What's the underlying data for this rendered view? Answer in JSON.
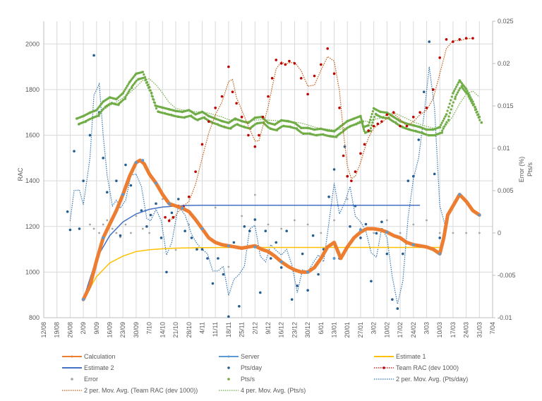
{
  "chart_data": {
    "type": "line",
    "title": "",
    "xlabel": "",
    "ylabel": "RAC",
    "y2label": [
      "Error (%)",
      "Pts/s"
    ],
    "ylim": [
      800,
      2100
    ],
    "y2lim": [
      -0.01,
      0.025
    ],
    "grid": true,
    "legend_position": "bottom",
    "y_ticks": [
      800,
      1000,
      1200,
      1400,
      1600,
      1800,
      2000
    ],
    "y2_ticks": [
      -0.01,
      -0.005,
      0,
      0.005,
      0.01,
      0.015,
      0.02,
      0.025
    ],
    "y2_tick_labels": [
      "-0.01",
      "-0.005",
      "0",
      "0.005",
      "0.01",
      "0.015",
      "0.02",
      "0.025"
    ],
    "x_tick_labels": [
      "12/08",
      "19/08",
      "26/08",
      "2/09",
      "9/09",
      "16/09",
      "23/09",
      "30/09",
      "7/10",
      "14/10",
      "21/10",
      "28/10",
      "4/11",
      "11/11",
      "18/11",
      "25/11",
      "2/12",
      "9/12",
      "16/12",
      "23/12",
      "30/12",
      "6/01",
      "13/01",
      "20/01",
      "27/01",
      "3/02",
      "10/02",
      "17/02",
      "24/02",
      "3/03",
      "10/03",
      "17/03",
      "24/03",
      "31/03",
      "7/04"
    ],
    "series": [
      {
        "name": "Calculation",
        "axis": "left",
        "style": "thick-line",
        "color": "#ED7D31",
        "x": [
          3.0,
          3.5,
          4.0,
          4.5,
          5.0,
          5.5,
          6.0,
          6.5,
          7.0,
          7.3,
          7.6,
          8.0,
          8.5,
          9.0,
          9.5,
          10.0,
          10.5,
          11.0,
          11.5,
          12.0,
          12.5,
          13.0,
          13.5,
          14.0,
          14.5,
          15.0,
          15.5,
          16.0,
          16.5,
          17.0,
          17.5,
          18.0,
          18.5,
          19.0,
          19.5,
          20.0,
          20.5,
          21.0,
          21.5,
          22.0,
          22.5,
          23.0,
          23.5,
          24.0,
          24.3,
          24.5,
          25.0,
          25.5,
          26.0,
          26.5,
          27.0,
          27.5,
          28.0,
          28.5,
          29.0,
          29.5,
          30.0,
          30.3,
          30.6,
          31.0,
          31.5,
          32.0,
          32.5,
          33.0
        ],
        "values": [
          880,
          940,
          1050,
          1150,
          1210,
          1270,
          1340,
          1420,
          1480,
          1490,
          1475,
          1430,
          1390,
          1340,
          1300,
          1290,
          1280,
          1265,
          1230,
          1190,
          1150,
          1130,
          1120,
          1115,
          1110,
          1105,
          1110,
          1115,
          1100,
          1090,
          1070,
          1045,
          1025,
          1010,
          1000,
          1000,
          1020,
          1060,
          1110,
          1130,
          1060,
          1110,
          1150,
          1175,
          1185,
          1190,
          1190,
          1185,
          1175,
          1160,
          1150,
          1130,
          1120,
          1115,
          1110,
          1100,
          1080,
          1150,
          1250,
          1290,
          1340,
          1310,
          1270,
          1250
        ]
      },
      {
        "name": "Server",
        "axis": "left",
        "style": "line-marker",
        "color": "#5B9BD5",
        "x": [
          3.0,
          4.5,
          6.0,
          7.0,
          7.5,
          8.5,
          9.5,
          10.5,
          12.0,
          14.0,
          16.0,
          18.0,
          20.0,
          22.0,
          24.0,
          26.0,
          28.0,
          30.0,
          31.5,
          33.0
        ],
        "values": [
          880,
          1150,
          1340,
          1480,
          1490,
          1390,
          1300,
          1280,
          1190,
          1115,
          1110,
          1045,
          1000,
          1060,
          1185,
          1175,
          1120,
          1080,
          1340,
          1250
        ]
      },
      {
        "name": "Estimate 1",
        "axis": "left",
        "style": "line",
        "color": "#FFC000",
        "x": [
          3,
          4,
          5,
          6,
          7,
          8,
          9,
          10,
          12,
          15,
          20,
          25,
          30
        ],
        "values": [
          880,
          980,
          1040,
          1070,
          1090,
          1098,
          1102,
          1105,
          1107,
          1108,
          1108,
          1108,
          1108
        ]
      },
      {
        "name": "Estimate 2",
        "axis": "left",
        "style": "line",
        "color": "#4472C4",
        "x": [
          3,
          4,
          5,
          6,
          7,
          8,
          9,
          10,
          11,
          12,
          15,
          20,
          25,
          28.5
        ],
        "values": [
          880,
          1060,
          1160,
          1220,
          1255,
          1275,
          1285,
          1290,
          1292,
          1293,
          1293,
          1293,
          1293,
          1293
        ]
      },
      {
        "name": "Pts/day",
        "axis": "left",
        "style": "markers",
        "color": "#255E91",
        "x": [
          1.8,
          2.0,
          2.3,
          2.7,
          3.0,
          3.5,
          3.8,
          4.2,
          4.5,
          4.8,
          5.2,
          5.5,
          5.8,
          6.2,
          6.6,
          7.0,
          7.4,
          7.8,
          8.1,
          8.5,
          8.9,
          9.3,
          9.7,
          10.2,
          10.7,
          11.2,
          11.6,
          12.0,
          12.4,
          12.8,
          13.2,
          13.6,
          14.0,
          14.4,
          14.8,
          15.2,
          15.6,
          16.0,
          16.4,
          16.8,
          17.2,
          17.6,
          18.0,
          18.4,
          18.8,
          19.2,
          19.6,
          20.0,
          20.4,
          20.8,
          21.2,
          21.6,
          22.0,
          22.4,
          22.8,
          23.2,
          23.6,
          24.0,
          24.4,
          24.8,
          25.2,
          25.6,
          26.0,
          26.4,
          26.8,
          27.2,
          27.6,
          28.0,
          28.4,
          28.8,
          29.2,
          29.6,
          30.0,
          30.5
        ],
        "values": [
          1265,
          1185,
          1530,
          1190,
          1400,
          1600,
          1950,
          1700,
          1500,
          1350,
          1230,
          1400,
          1160,
          1470,
          1380,
          1480,
          1270,
          1200,
          1250,
          1300,
          1150,
          1000,
          1260,
          1320,
          1180,
          1150,
          1100,
          1100,
          1060,
          950,
          1060,
          990,
          805,
          1130,
          850,
          1200,
          1180,
          1230,
          910,
          1180,
          1060,
          1130,
          1020,
          1180,
          880,
          940,
          1080,
          920,
          1160,
          990,
          1100,
          1330,
          1450,
          1060,
          1550,
          1200,
          1290,
          1150,
          1210,
          960,
          1170,
          1220,
          1080,
          880,
          840,
          1080,
          1400,
          1420,
          1580,
          1790,
          2010,
          1430,
          1150,
          1220
        ]
      },
      {
        "name": "Team RAC (dev 1000)",
        "axis": "left",
        "style": "markers-dotted",
        "color": "#C00000",
        "x": [
          9.2,
          9.5,
          9.8,
          10.2,
          10.6,
          11.0,
          11.5,
          12.0,
          12.5,
          13.0,
          13.5,
          14.0,
          14.3,
          14.6,
          15.0,
          15.5,
          16.0,
          16.3,
          16.6,
          17.0,
          17.3,
          17.6,
          18.0,
          18.3,
          18.6,
          19.0,
          19.5,
          20.0,
          20.5,
          21.0,
          21.5,
          22.0,
          22.4,
          22.7,
          23.0,
          23.3,
          23.6,
          24.0,
          24.3,
          24.6,
          25.0,
          25.3,
          25.6,
          26.0,
          26.5,
          27.0,
          27.5,
          28.0,
          28.5,
          29.0,
          29.5,
          30.0,
          30.5,
          31.0,
          31.5,
          32.0,
          32.5
        ],
        "values": [
          1240,
          1225,
          1240,
          1290,
          1290,
          1330,
          1440,
          1560,
          1660,
          1720,
          1770,
          1900,
          1790,
          1740,
          1680,
          1600,
          1550,
          1600,
          1680,
          1770,
          1850,
          1930,
          1915,
          1910,
          1925,
          1915,
          1850,
          1780,
          1860,
          1910,
          1980,
          1870,
          1720,
          1510,
          1420,
          1400,
          1440,
          1520,
          1560,
          1620,
          1640,
          1650,
          1660,
          1690,
          1700,
          1640,
          1640,
          1680,
          1700,
          1720,
          1800,
          1940,
          2020,
          2010,
          2020,
          2025,
          2025
        ]
      },
      {
        "name": "Error",
        "axis": "right",
        "style": "markers",
        "color": "#A5A5A5",
        "x": [
          3.5,
          3.8,
          4.2,
          4.5,
          4.8,
          5.2,
          5.5,
          5.8,
          6.2,
          6.6,
          7.0,
          7.5,
          8.0,
          9.0,
          10.0,
          11.0,
          12.0,
          13.0,
          14.0,
          15.0,
          16.0,
          17.0,
          18.0,
          19.0,
          20.0,
          21.0,
          22.0,
          23.0,
          24.0,
          25.0,
          26.0,
          27.0,
          28.0,
          29.0,
          30.0,
          31.0,
          32.0,
          33.0
        ],
        "values": [
          0.001,
          0.0005,
          0.0,
          0.001,
          0.0015,
          0.0005,
          0.0,
          -0.0005,
          0.001,
          0.0,
          0.002,
          0.0005,
          0.0,
          0.004,
          -0.002,
          0.001,
          0.0005,
          0.003,
          -0.004,
          0.002,
          0.0045,
          0.001,
          0.0005,
          0.0015,
          0.001,
          0.0,
          0.0015,
          0.004,
          0.0005,
          0.0,
          0.0015,
          0.0,
          0.001,
          0.0015,
          0.0,
          0.0,
          0.0,
          0.0
        ]
      },
      {
        "name": "Pts/s",
        "axis": "right",
        "style": "markers",
        "color": "#70AD47",
        "x": [
          2.5,
          3.0,
          3.5,
          4.0,
          4.5,
          5.0,
          5.5,
          6.0,
          6.5,
          7.0,
          7.5,
          8.0,
          8.5,
          9.0,
          9.5,
          10.0,
          10.5,
          11.0,
          11.5,
          12.0,
          12.5,
          13.0,
          13.5,
          14.0,
          14.5,
          15.0,
          15.5,
          16.0,
          16.5,
          17.0,
          17.5,
          18.0,
          18.5,
          19.0,
          19.5,
          20.0,
          20.5,
          21.0,
          21.5,
          22.0,
          22.5,
          23.0,
          23.5,
          24.0,
          24.2,
          24.6,
          25.0,
          25.5,
          26.0,
          26.5,
          27.0,
          27.5,
          28.0,
          28.5,
          29.0,
          29.5,
          30.0,
          30.5,
          31.0,
          31.5,
          32.0,
          32.5,
          33.0
        ],
        "values": [
          0.0135,
          0.0138,
          0.0142,
          0.0145,
          0.0155,
          0.016,
          0.0158,
          0.0165,
          0.0178,
          0.0188,
          0.019,
          0.0172,
          0.015,
          0.0148,
          0.0146,
          0.0144,
          0.0143,
          0.0145,
          0.014,
          0.0143,
          0.0138,
          0.0135,
          0.0132,
          0.013,
          0.0135,
          0.0132,
          0.013,
          0.0136,
          0.0137,
          0.013,
          0.0128,
          0.0133,
          0.0132,
          0.013,
          0.0124,
          0.0124,
          0.0122,
          0.0123,
          0.0121,
          0.012,
          0.0126,
          0.0132,
          0.0135,
          0.0138,
          0.0125,
          0.0127,
          0.0147,
          0.0143,
          0.0142,
          0.0137,
          0.0132,
          0.0129,
          0.0127,
          0.0125,
          0.0122,
          0.0122,
          0.0125,
          0.014,
          0.0165,
          0.018,
          0.017,
          0.0155,
          0.0137
        ]
      },
      {
        "name": "2 per. Mov. Avg. (Team RAC (dev 1000))",
        "axis": "left",
        "style": "dotted",
        "color": "#C55A11",
        "of": "Team RAC (dev 1000)"
      },
      {
        "name": "2 per. Mov. Avg. (Pts/day)",
        "axis": "left",
        "style": "dotted",
        "color": "#2E75B6",
        "of": "Pts/day"
      },
      {
        "name": "4 per. Mov. Avg. (Pts/s)",
        "axis": "right",
        "style": "dotted",
        "color": "#70AD47",
        "of": "Pts/s"
      }
    ]
  },
  "legend": [
    {
      "label": "Calculation",
      "kind": "line-marker",
      "color": "#ED7D31"
    },
    {
      "label": "Server",
      "kind": "line-marker",
      "color": "#5B9BD5"
    },
    {
      "label": "Estimate 1",
      "kind": "line",
      "color": "#FFC000"
    },
    {
      "label": "Estimate 2",
      "kind": "line",
      "color": "#4472C4"
    },
    {
      "label": "Pts/day",
      "kind": "marker",
      "color": "#255E91"
    },
    {
      "label": "Team RAC (dev 1000)",
      "kind": "dotted-marker",
      "color": "#C00000"
    },
    {
      "label": "Error",
      "kind": "marker",
      "color": "#A5A5A5"
    },
    {
      "label": "Pts/s",
      "kind": "marker",
      "color": "#70AD47"
    },
    {
      "label": "2 per. Mov. Avg. (Pts/day)",
      "kind": "dotted",
      "color": "#2E75B6"
    },
    {
      "label": "2 per. Mov. Avg. (Team RAC (dev 1000))",
      "kind": "dotted",
      "color": "#C55A11"
    },
    {
      "label": "4 per. Mov. Avg. (Pts/s)",
      "kind": "dotted",
      "color": "#70AD47"
    }
  ]
}
